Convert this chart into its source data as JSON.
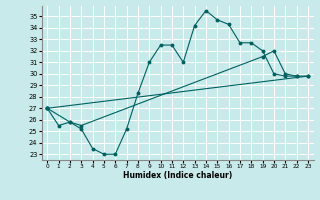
{
  "xlabel": "Humidex (Indice chaleur)",
  "background_color": "#c8eaea",
  "grid_color": "#ffffff",
  "line_color": "#006060",
  "xlim": [
    -0.5,
    23.5
  ],
  "ylim": [
    22.5,
    35.9
  ],
  "yticks": [
    23,
    24,
    25,
    26,
    27,
    28,
    29,
    30,
    31,
    32,
    33,
    34,
    35
  ],
  "xticks": [
    0,
    1,
    2,
    3,
    4,
    5,
    6,
    7,
    8,
    9,
    10,
    11,
    12,
    13,
    14,
    15,
    16,
    17,
    18,
    19,
    20,
    21,
    22,
    23
  ],
  "line1_x": [
    0,
    1,
    2,
    3,
    4,
    5,
    6,
    7,
    8,
    9,
    10,
    11,
    12,
    13,
    14,
    15,
    16,
    17,
    18,
    19,
    20,
    21,
    22
  ],
  "line1_y": [
    27.0,
    25.5,
    25.8,
    25.2,
    23.5,
    23.0,
    23.0,
    25.2,
    28.3,
    31.0,
    32.5,
    32.5,
    31.0,
    34.2,
    35.5,
    34.7,
    34.3,
    32.7,
    32.7,
    32.0,
    30.0,
    29.8,
    29.8
  ],
  "line2_x": [
    0,
    2,
    3,
    19,
    20,
    21,
    22,
    23
  ],
  "line2_y": [
    27.0,
    25.8,
    25.5,
    31.5,
    32.0,
    30.0,
    29.8,
    29.8
  ],
  "line3_x": [
    0,
    23
  ],
  "line3_y": [
    27.0,
    29.8
  ]
}
